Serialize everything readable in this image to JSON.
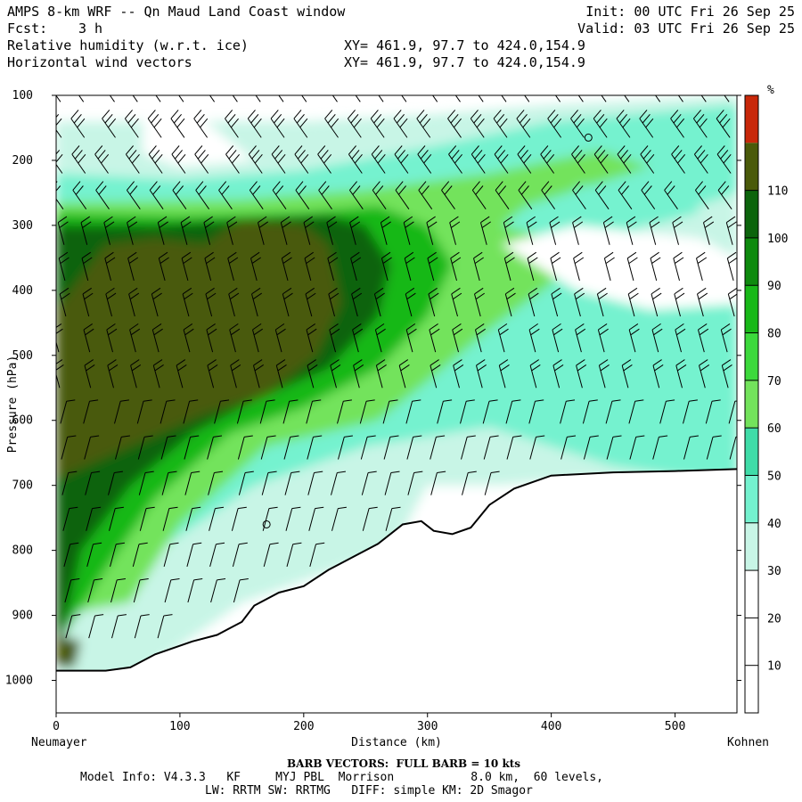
{
  "header": {
    "title": "AMPS 8-km WRF -- Qn Maud Land Coast window",
    "forecast_label": "Fcst:",
    "forecast_value": "3 h",
    "field1": "Relative humidity (w.r.t. ice)",
    "field2": "Horizontal wind vectors",
    "xy1": "XY= 461.9, 97.7 to 424.0,154.9",
    "xy2": "XY= 461.9, 97.7 to 424.0,154.9",
    "init": "Init: 00 UTC Fri 26 Sep 25",
    "valid": "Valid: 03 UTC Fri 26 Sep 25"
  },
  "footer": {
    "barb_note": "BARB VECTORS:  FULL BARB = 10 kts",
    "model_line1": "Model Info: V4.3.3   KF     MYJ PBL  Morrison           8.0 km,  60 levels,",
    "model_line2": "LW: RRTM SW: RRTMG   DIFF: simple KM: 2D Smagor"
  },
  "chart_data": {
    "type": "heatmap",
    "title": "Relative humidity (w.r.t. ice) and horizontal wind vectors, cross-section",
    "xlabel": "Distance (km)",
    "ylabel": "Pressure (hPa)",
    "x_start_label": "Neumayer",
    "x_end_label": "Kohnen",
    "xlim": [
      0,
      550
    ],
    "ylim": [
      1050,
      100
    ],
    "x_ticks": [
      0,
      100,
      200,
      300,
      400,
      500
    ],
    "y_ticks": [
      100,
      200,
      300,
      400,
      500,
      600,
      700,
      800,
      900,
      1000
    ],
    "colorbar": {
      "unit": "%",
      "ticks": [
        10,
        20,
        30,
        40,
        50,
        60,
        70,
        80,
        90,
        100,
        110
      ],
      "colors": [
        "#ffffff",
        "#ffffff",
        "#ffffff",
        "#c8f5e6",
        "#74f2cf",
        "#3fdca8",
        "#73e35c",
        "#3cd93c",
        "#18b818",
        "#0e8a0e",
        "#0c640c",
        "#4a5a0a",
        "#c8280a"
      ]
    },
    "terrain_profile": [
      {
        "x": 0,
        "p": 985
      },
      {
        "x": 40,
        "p": 985
      },
      {
        "x": 60,
        "p": 980
      },
      {
        "x": 80,
        "p": 960
      },
      {
        "x": 110,
        "p": 940
      },
      {
        "x": 130,
        "p": 930
      },
      {
        "x": 150,
        "p": 910
      },
      {
        "x": 160,
        "p": 885
      },
      {
        "x": 180,
        "p": 865
      },
      {
        "x": 200,
        "p": 855
      },
      {
        "x": 220,
        "p": 830
      },
      {
        "x": 240,
        "p": 810
      },
      {
        "x": 260,
        "p": 790
      },
      {
        "x": 280,
        "p": 760
      },
      {
        "x": 295,
        "p": 755
      },
      {
        "x": 305,
        "p": 770
      },
      {
        "x": 320,
        "p": 775
      },
      {
        "x": 335,
        "p": 765
      },
      {
        "x": 350,
        "p": 730
      },
      {
        "x": 370,
        "p": 705
      },
      {
        "x": 400,
        "p": 685
      },
      {
        "x": 450,
        "p": 680
      },
      {
        "x": 500,
        "p": 678
      },
      {
        "x": 550,
        "p": 675
      }
    ],
    "moisture_regions": [
      {
        "level": "30%",
        "range_km": [
          0,
          550
        ],
        "range_hPa": [
          1000,
          100
        ],
        "color": "#c8f5e6"
      },
      {
        "level": "50%",
        "range_km": [
          0,
          550
        ],
        "range_hPa": [
          760,
          110
        ],
        "color": "#74f2cf"
      },
      {
        "level": "60%",
        "range_km": [
          0,
          420
        ],
        "range_hPa": [
          880,
          200
        ],
        "color": "#73e35c"
      },
      {
        "level": "80%",
        "range_km": [
          0,
          330
        ],
        "range_hPa": [
          950,
          260
        ],
        "color": "#18b818"
      },
      {
        "level": "90%",
        "range_km": [
          0,
          250
        ],
        "range_hPa": [
          980,
          290
        ],
        "color": "#0c640c"
      },
      {
        "level": "100%",
        "range_km": [
          0,
          200
        ],
        "range_hPa": [
          690,
          310
        ],
        "color": "#4a5a0a"
      }
    ]
  }
}
